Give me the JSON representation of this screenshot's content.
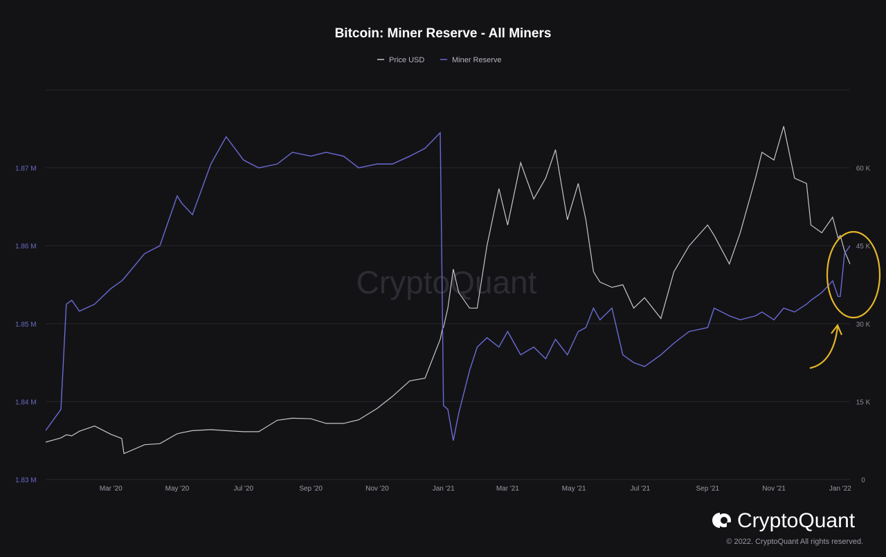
{
  "chart_data": {
    "type": "line",
    "title": "Bitcoin: Miner Reserve - All Miners",
    "legend": {
      "placement": "top-center",
      "entries": [
        "Price USD",
        "Miner Reserve"
      ]
    },
    "grid": true,
    "x_ticks": [
      "Mar '20",
      "May '20",
      "Jul '20",
      "Sep '20",
      "Nov '20",
      "Jan '21",
      "Mar '21",
      "May '21",
      "Jul '21",
      "Sep '21",
      "Nov '21",
      "Jan '22"
    ],
    "left_axis": {
      "ticks": [
        "1.83 M",
        "1.84 M",
        "1.85 M",
        "1.86 M",
        "1.87 M"
      ],
      "range": [
        1.83,
        1.88
      ],
      "unit": "M BTC"
    },
    "right_axis": {
      "ticks": [
        "0",
        "15 K",
        "30 K",
        "45 K",
        "60 K"
      ],
      "range": [
        0,
        75000
      ]
    },
    "x": [
      "2020-01-01",
      "2020-01-15",
      "2020-01-20",
      "2020-01-25",
      "2020-02-01",
      "2020-02-15",
      "2020-03-01",
      "2020-03-11",
      "2020-03-13",
      "2020-04-01",
      "2020-04-15",
      "2020-05-01",
      "2020-05-05",
      "2020-05-15",
      "2020-06-01",
      "2020-06-15",
      "2020-07-01",
      "2020-07-15",
      "2020-08-01",
      "2020-08-15",
      "2020-09-01",
      "2020-09-15",
      "2020-10-01",
      "2020-10-15",
      "2020-11-01",
      "2020-11-15",
      "2020-12-01",
      "2020-12-15",
      "2020-12-29",
      "2020-12-31",
      "2021-01-01",
      "2021-01-05",
      "2021-01-10",
      "2021-01-15",
      "2021-01-25",
      "2021-02-01",
      "2021-02-10",
      "2021-02-21",
      "2021-03-01",
      "2021-03-13",
      "2021-03-25",
      "2021-04-05",
      "2021-04-14",
      "2021-04-25",
      "2021-05-05",
      "2021-05-12",
      "2021-05-19",
      "2021-05-25",
      "2021-06-05",
      "2021-06-15",
      "2021-06-25",
      "2021-07-05",
      "2021-07-20",
      "2021-08-01",
      "2021-08-15",
      "2021-09-01",
      "2021-09-07",
      "2021-09-21",
      "2021-10-01",
      "2021-10-15",
      "2021-10-21",
      "2021-11-01",
      "2021-11-10",
      "2021-11-20",
      "2021-12-01",
      "2021-12-05",
      "2021-12-15",
      "2021-12-25",
      "2021-12-30",
      "2022-01-01",
      "2022-01-05",
      "2022-01-10"
    ],
    "series": [
      {
        "name": "Price USD",
        "color": "#c8c8cc",
        "axis": "right",
        "values": [
          7200,
          8000,
          8600,
          8400,
          9300,
          10300,
          8700,
          7900,
          5000,
          6700,
          6900,
          8800,
          9000,
          9400,
          9600,
          9400,
          9200,
          9200,
          11400,
          11800,
          11700,
          10800,
          10800,
          11500,
          13700,
          16000,
          19000,
          19500,
          27000,
          29000,
          29300,
          33000,
          40500,
          36000,
          33000,
          33000,
          45000,
          56000,
          49000,
          61000,
          54000,
          58000,
          63500,
          50000,
          57000,
          50000,
          40000,
          38000,
          37000,
          37500,
          33000,
          35000,
          31000,
          40000,
          45000,
          49000,
          47000,
          41500,
          47500,
          58000,
          63000,
          61500,
          68000,
          58000,
          57000,
          49000,
          47500,
          50500,
          46500,
          47000,
          44000,
          41500
        ]
      },
      {
        "name": "Miner Reserve",
        "color": "#6b6bd6",
        "axis": "left",
        "values": [
          1.8363,
          1.839,
          1.8525,
          1.853,
          1.8516,
          1.8525,
          1.8545,
          1.8555,
          1.8558,
          1.859,
          1.86,
          1.8664,
          1.8655,
          1.864,
          1.8705,
          1.874,
          1.871,
          1.87,
          1.8705,
          1.872,
          1.8715,
          1.872,
          1.8715,
          1.87,
          1.8705,
          1.8705,
          1.8715,
          1.8725,
          1.8745,
          1.852,
          1.8395,
          1.839,
          1.835,
          1.8385,
          1.844,
          1.847,
          1.8482,
          1.847,
          1.849,
          1.846,
          1.847,
          1.8455,
          1.848,
          1.846,
          1.849,
          1.8495,
          1.852,
          1.8505,
          1.852,
          1.846,
          1.845,
          1.8445,
          1.846,
          1.8475,
          1.849,
          1.8495,
          1.852,
          1.851,
          1.8505,
          1.851,
          1.8515,
          1.8505,
          1.852,
          1.8515,
          1.8525,
          1.853,
          1.854,
          1.8555,
          1.8535,
          1.8535,
          1.859,
          1.86
        ]
      }
    ],
    "annotation": {
      "type": "circle-and-arrow",
      "color": "#e6b628",
      "target_date": "2022-01-03"
    }
  },
  "watermark": "CryptoQuant",
  "footer": {
    "brand": "CryptoQuant",
    "copyright": "© 2022. CryptoQuant All rights reserved."
  }
}
